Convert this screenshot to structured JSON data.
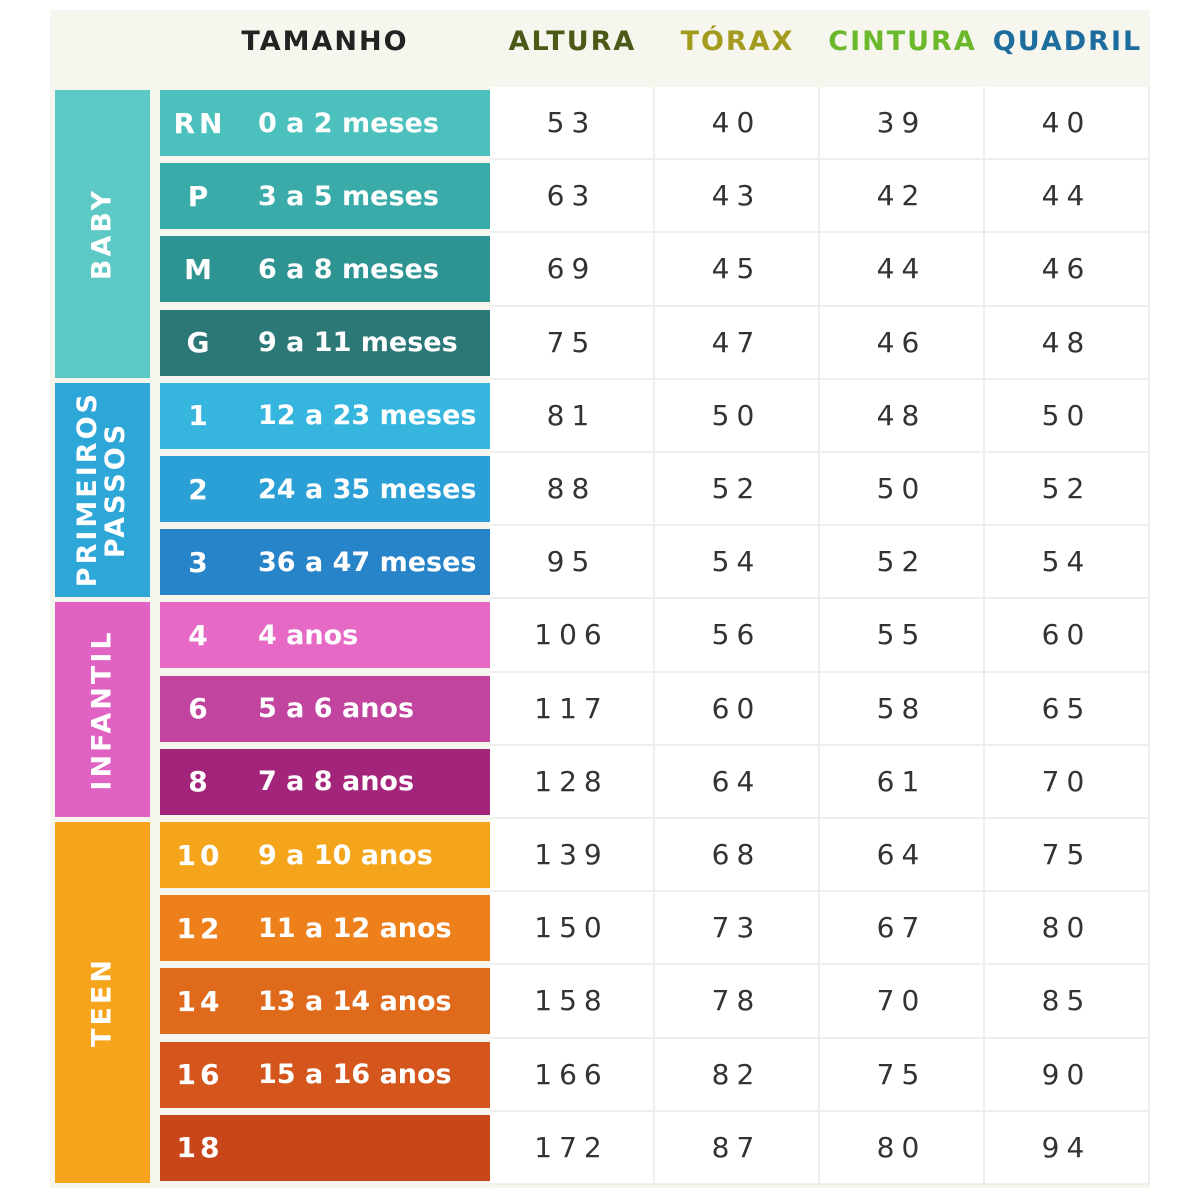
{
  "header": {
    "size_title": "TAMANHO",
    "columns": [
      {
        "label": "ALTURA",
        "color": "#4b5a16"
      },
      {
        "label": "TÓRAX",
        "color": "#a39b1e"
      },
      {
        "label": "CINTURA",
        "color": "#6bb82a"
      },
      {
        "label": "QUADRIL",
        "color": "#1d6c9e"
      }
    ]
  },
  "groups": [
    {
      "label": "BABY",
      "color": "#5dc9c5",
      "rows": [
        {
          "size": "RN",
          "age": "0 a 2 meses",
          "color": "#4cc0bd",
          "values": [
            53,
            40,
            39,
            40
          ]
        },
        {
          "size": "P",
          "age": "3 a 5 meses",
          "color": "#3aaba8",
          "values": [
            63,
            43,
            42,
            44
          ]
        },
        {
          "size": "M",
          "age": "6 a 8 meses",
          "color": "#2e9492",
          "values": [
            69,
            45,
            44,
            46
          ]
        },
        {
          "size": "G",
          "age": "9 a 11 meses",
          "color": "#2b7877",
          "values": [
            75,
            47,
            46,
            48
          ]
        }
      ]
    },
    {
      "label": "PRIMEIROS PASSOS",
      "color": "#2da6d8",
      "rows": [
        {
          "size": "1",
          "age": "12 a 23 meses",
          "color": "#36b6de",
          "values": [
            81,
            50,
            48,
            50
          ]
        },
        {
          "size": "2",
          "age": "24 a 35 meses",
          "color": "#2aa0d6",
          "values": [
            88,
            52,
            50,
            52
          ]
        },
        {
          "size": "3",
          "age": "36 a 47 meses",
          "color": "#2784c8",
          "values": [
            95,
            54,
            52,
            54
          ]
        }
      ]
    },
    {
      "label": "INFANTIL",
      "color": "#e062c2",
      "rows": [
        {
          "size": "4",
          "age": "4 anos",
          "color": "#e66ac5",
          "values": [
            106,
            56,
            55,
            60
          ]
        },
        {
          "size": "6",
          "age": "5 a 6 anos",
          "color": "#c1449f",
          "values": [
            117,
            60,
            58,
            65
          ]
        },
        {
          "size": "8",
          "age": "7 a 8 anos",
          "color": "#a3257b",
          "values": [
            128,
            64,
            61,
            70
          ]
        }
      ]
    },
    {
      "label": "TEEN",
      "color": "#f5a41b",
      "rows": [
        {
          "size": "10",
          "age": "9 a 10 anos",
          "color": "#f5a51b",
          "values": [
            139,
            68,
            64,
            75
          ]
        },
        {
          "size": "12",
          "age": "11 a 12 anos",
          "color": "#ee801c",
          "values": [
            150,
            73,
            67,
            80
          ]
        },
        {
          "size": "14",
          "age": "13 a 14 anos",
          "color": "#df6a1c",
          "values": [
            158,
            78,
            70,
            85
          ]
        },
        {
          "size": "16",
          "age": "15 a 16 anos",
          "color": "#d4561c",
          "values": [
            166,
            82,
            75,
            90
          ]
        },
        {
          "size": "18",
          "color": "#c9451a",
          "values": [
            172,
            87,
            80,
            94
          ]
        }
      ]
    }
  ]
}
